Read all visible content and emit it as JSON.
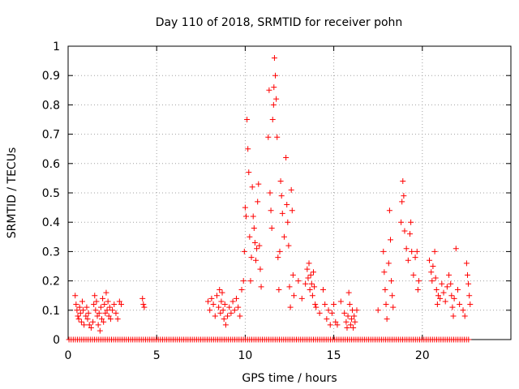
{
  "chart_data": {
    "type": "scatter",
    "title": "Day 110 of 2018, SRMTID for receiver pohn",
    "xlabel": "GPS time / hours",
    "ylabel": "SRMTID / TECUs",
    "xlim": [
      0,
      25
    ],
    "ylim": [
      0,
      1
    ],
    "xticks": [
      0,
      5,
      10,
      15,
      20
    ],
    "xtick_labels": [
      "0",
      "5",
      "10",
      "15",
      "20"
    ],
    "yticks": [
      0,
      0.1,
      0.2,
      0.3,
      0.4,
      0.5,
      0.6,
      0.7,
      0.8,
      0.9,
      1
    ],
    "ytick_labels": [
      "0",
      "0.1",
      "0.2",
      "0.3",
      "0.4",
      "0.5",
      "0.6",
      "0.7",
      "0.8",
      "0.9",
      "1"
    ],
    "grid": true,
    "marker": "+",
    "color": "#ff0000",
    "series": [
      {
        "name": "SRMTID",
        "zero_baseline_x_range": [
          0.05,
          22.7
        ],
        "points": [
          [
            0.4,
            0.15
          ],
          [
            0.45,
            0.12
          ],
          [
            0.5,
            0.1
          ],
          [
            0.55,
            0.08
          ],
          [
            0.6,
            0.07
          ],
          [
            0.65,
            0.11
          ],
          [
            0.7,
            0.09
          ],
          [
            0.75,
            0.06
          ],
          [
            0.8,
            0.13
          ],
          [
            0.85,
            0.1
          ],
          [
            0.9,
            0.05
          ],
          [
            1.0,
            0.08
          ],
          [
            1.05,
            0.11
          ],
          [
            1.1,
            0.07
          ],
          [
            1.15,
            0.09
          ],
          [
            1.2,
            0.05
          ],
          [
            1.3,
            0.04
          ],
          [
            1.4,
            0.06
          ],
          [
            1.45,
            0.12
          ],
          [
            1.5,
            0.15
          ],
          [
            1.55,
            0.1
          ],
          [
            1.6,
            0.13
          ],
          [
            1.65,
            0.08
          ],
          [
            1.7,
            0.05
          ],
          [
            1.75,
            0.09
          ],
          [
            1.8,
            0.03
          ],
          [
            1.85,
            0.11
          ],
          [
            1.9,
            0.07
          ],
          [
            1.95,
            0.14
          ],
          [
            2.0,
            0.06
          ],
          [
            2.05,
            0.12
          ],
          [
            2.1,
            0.09
          ],
          [
            2.15,
            0.16
          ],
          [
            2.2,
            0.1
          ],
          [
            2.25,
            0.13
          ],
          [
            2.3,
            0.08
          ],
          [
            2.35,
            0.11
          ],
          [
            2.4,
            0.07
          ],
          [
            2.5,
            0.1
          ],
          [
            2.6,
            0.12
          ],
          [
            2.7,
            0.09
          ],
          [
            2.8,
            0.07
          ],
          [
            2.9,
            0.13
          ],
          [
            3.0,
            0.12
          ],
          [
            4.2,
            0.14
          ],
          [
            4.25,
            0.12
          ],
          [
            4.3,
            0.11
          ],
          [
            7.9,
            0.13
          ],
          [
            8.0,
            0.1
          ],
          [
            8.1,
            0.14
          ],
          [
            8.2,
            0.12
          ],
          [
            8.3,
            0.08
          ],
          [
            8.4,
            0.15
          ],
          [
            8.5,
            0.11
          ],
          [
            8.55,
            0.17
          ],
          [
            8.6,
            0.09
          ],
          [
            8.65,
            0.13
          ],
          [
            8.7,
            0.16
          ],
          [
            8.75,
            0.1
          ],
          [
            8.8,
            0.07
          ],
          [
            8.85,
            0.12
          ],
          [
            8.9,
            0.05
          ],
          [
            9.0,
            0.08
          ],
          [
            9.1,
            0.11
          ],
          [
            9.2,
            0.09
          ],
          [
            9.3,
            0.13
          ],
          [
            9.4,
            0.1
          ],
          [
            9.5,
            0.14
          ],
          [
            9.6,
            0.11
          ],
          [
            9.7,
            0.08
          ],
          [
            9.8,
            0.17
          ],
          [
            9.9,
            0.2
          ],
          [
            9.95,
            0.3
          ],
          [
            10.0,
            0.45
          ],
          [
            10.05,
            0.42
          ],
          [
            10.1,
            0.75
          ],
          [
            10.15,
            0.65
          ],
          [
            10.2,
            0.57
          ],
          [
            10.25,
            0.35
          ],
          [
            10.3,
            0.2
          ],
          [
            10.35,
            0.28
          ],
          [
            10.4,
            0.52
          ],
          [
            10.45,
            0.42
          ],
          [
            10.5,
            0.38
          ],
          [
            10.55,
            0.33
          ],
          [
            10.6,
            0.27
          ],
          [
            10.65,
            0.31
          ],
          [
            10.7,
            0.47
          ],
          [
            10.75,
            0.53
          ],
          [
            10.8,
            0.32
          ],
          [
            10.85,
            0.24
          ],
          [
            10.9,
            0.18
          ],
          [
            11.3,
            0.69
          ],
          [
            11.35,
            0.85
          ],
          [
            11.4,
            0.5
          ],
          [
            11.45,
            0.44
          ],
          [
            11.5,
            0.38
          ],
          [
            11.55,
            0.75
          ],
          [
            11.6,
            0.8
          ],
          [
            11.62,
            0.86
          ],
          [
            11.65,
            0.96
          ],
          [
            11.7,
            0.9
          ],
          [
            11.75,
            0.82
          ],
          [
            11.8,
            0.69
          ],
          [
            11.85,
            0.28
          ],
          [
            11.9,
            0.17
          ],
          [
            11.95,
            0.3
          ],
          [
            12.0,
            0.54
          ],
          [
            12.05,
            0.49
          ],
          [
            12.1,
            0.43
          ],
          [
            12.2,
            0.35
          ],
          [
            12.3,
            0.62
          ],
          [
            12.35,
            0.46
          ],
          [
            12.4,
            0.4
          ],
          [
            12.45,
            0.32
          ],
          [
            12.5,
            0.18
          ],
          [
            12.55,
            0.11
          ],
          [
            12.6,
            0.51
          ],
          [
            12.65,
            0.44
          ],
          [
            12.7,
            0.22
          ],
          [
            12.75,
            0.15
          ],
          [
            13.0,
            0.2
          ],
          [
            13.2,
            0.14
          ],
          [
            13.4,
            0.19
          ],
          [
            13.5,
            0.24
          ],
          [
            13.55,
            0.21
          ],
          [
            13.6,
            0.26
          ],
          [
            13.65,
            0.17
          ],
          [
            13.7,
            0.22
          ],
          [
            13.75,
            0.19
          ],
          [
            13.8,
            0.15
          ],
          [
            13.85,
            0.23
          ],
          [
            13.9,
            0.18
          ],
          [
            13.95,
            0.12
          ],
          [
            14.0,
            0.11
          ],
          [
            14.2,
            0.09
          ],
          [
            14.4,
            0.17
          ],
          [
            14.5,
            0.12
          ],
          [
            14.6,
            0.07
          ],
          [
            14.7,
            0.1
          ],
          [
            14.8,
            0.05
          ],
          [
            14.9,
            0.09
          ],
          [
            15.0,
            0.12
          ],
          [
            15.1,
            0.06
          ],
          [
            15.2,
            0.05
          ],
          [
            15.4,
            0.13
          ],
          [
            15.6,
            0.09
          ],
          [
            15.7,
            0.06
          ],
          [
            15.75,
            0.04
          ],
          [
            15.8,
            0.08
          ],
          [
            15.85,
            0.16
          ],
          [
            15.9,
            0.12
          ],
          [
            15.95,
            0.05
          ],
          [
            16.0,
            0.07
          ],
          [
            16.05,
            0.1
          ],
          [
            16.1,
            0.04
          ],
          [
            16.15,
            0.08
          ],
          [
            16.2,
            0.06
          ],
          [
            16.3,
            0.1
          ],
          [
            17.5,
            0.1
          ],
          [
            17.8,
            0.3
          ],
          [
            17.85,
            0.23
          ],
          [
            17.9,
            0.17
          ],
          [
            17.95,
            0.12
          ],
          [
            18.0,
            0.07
          ],
          [
            18.1,
            0.26
          ],
          [
            18.15,
            0.44
          ],
          [
            18.2,
            0.34
          ],
          [
            18.25,
            0.2
          ],
          [
            18.3,
            0.15
          ],
          [
            18.35,
            0.11
          ],
          [
            18.8,
            0.4
          ],
          [
            18.85,
            0.47
          ],
          [
            18.9,
            0.54
          ],
          [
            18.95,
            0.49
          ],
          [
            19.0,
            0.37
          ],
          [
            19.1,
            0.31
          ],
          [
            19.2,
            0.27
          ],
          [
            19.3,
            0.36
          ],
          [
            19.35,
            0.4
          ],
          [
            19.4,
            0.3
          ],
          [
            19.5,
            0.22
          ],
          [
            19.6,
            0.28
          ],
          [
            19.7,
            0.3
          ],
          [
            19.75,
            0.17
          ],
          [
            19.8,
            0.2
          ],
          [
            20.4,
            0.27
          ],
          [
            20.5,
            0.23
          ],
          [
            20.55,
            0.2
          ],
          [
            20.6,
            0.25
          ],
          [
            20.7,
            0.3
          ],
          [
            20.75,
            0.21
          ],
          [
            20.8,
            0.17
          ],
          [
            20.85,
            0.12
          ],
          [
            20.9,
            0.15
          ],
          [
            21.0,
            0.14
          ],
          [
            21.1,
            0.19
          ],
          [
            21.2,
            0.16
          ],
          [
            21.3,
            0.13
          ],
          [
            21.4,
            0.18
          ],
          [
            21.5,
            0.22
          ],
          [
            21.6,
            0.19
          ],
          [
            21.65,
            0.15
          ],
          [
            21.7,
            0.11
          ],
          [
            21.75,
            0.08
          ],
          [
            21.8,
            0.14
          ],
          [
            21.9,
            0.31
          ],
          [
            22.0,
            0.17
          ],
          [
            22.1,
            0.12
          ],
          [
            22.3,
            0.1
          ],
          [
            22.4,
            0.08
          ],
          [
            22.5,
            0.26
          ],
          [
            22.55,
            0.22
          ],
          [
            22.6,
            0.19
          ],
          [
            22.65,
            0.15
          ],
          [
            22.7,
            0.12
          ]
        ]
      }
    ]
  }
}
